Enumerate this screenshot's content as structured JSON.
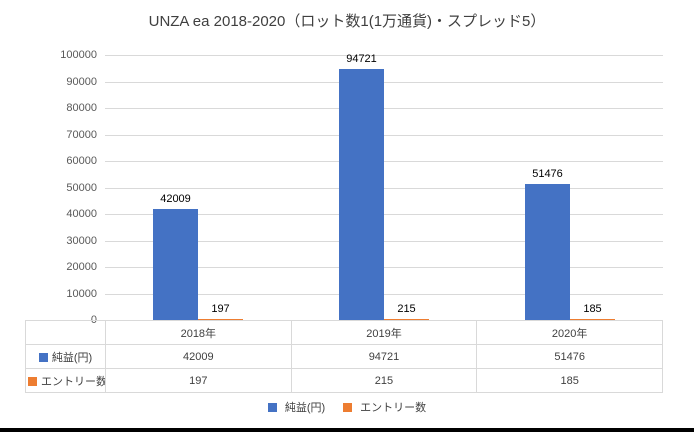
{
  "chart_data": {
    "type": "bar",
    "title": "UNZA ea 2018-2020（ロット数1(1万通貨)・スプレッド5）",
    "categories": [
      "2018年",
      "2019年",
      "2020年"
    ],
    "series": [
      {
        "name": "純益(円)",
        "slug": "net-profit-yen",
        "color": "#4472C4",
        "values": [
          42009,
          94721,
          51476
        ]
      },
      {
        "name": "エントリー数",
        "slug": "entry-count",
        "color": "#ED7D31",
        "values": [
          197,
          215,
          185
        ]
      }
    ],
    "ylim": [
      0,
      100000
    ],
    "ytick_step": 10000,
    "grid": true,
    "legend_position": "bottom",
    "data_labels": true,
    "has_data_table": true
  }
}
